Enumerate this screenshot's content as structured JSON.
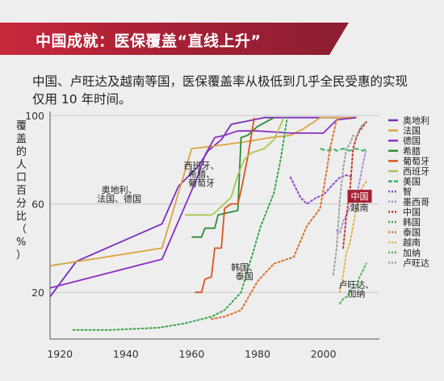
{
  "header": {
    "title": "中国成就：医保覆盖“直线上升”",
    "subtitle": "中国、卢旺达及越南等国，医保覆盖率从极低到几乎全民受惠的实现仅用 10 年时间。"
  },
  "chart_data": {
    "type": "line",
    "ylabel": "覆盖的人口百分比（%）",
    "xlim": [
      1917,
      2017
    ],
    "ylim": [
      0,
      100
    ],
    "x_ticks": [
      "1920",
      "1940",
      "1960",
      "1980",
      "2000"
    ],
    "y_ticks": [
      "20",
      "60",
      "100"
    ],
    "annotations": [
      {
        "text": "奥地利、",
        "x": 1938,
        "y": 65
      },
      {
        "text": "法国、德国",
        "x": 1938,
        "y": 61
      },
      {
        "text": "西班牙、",
        "x": 1963,
        "y": 76
      },
      {
        "text": "希腊、",
        "x": 1963,
        "y": 72
      },
      {
        "text": "葡萄牙",
        "x": 1963,
        "y": 68
      },
      {
        "text": "韩国、",
        "x": 1976,
        "y": 30
      },
      {
        "text": "泰国",
        "x": 1976,
        "y": 26
      },
      {
        "text": "卢旺达、",
        "x": 2010,
        "y": 22
      },
      {
        "text": "加纳",
        "x": 2010,
        "y": 18
      },
      {
        "text": "中国",
        "x": 2011,
        "y": 62
      },
      {
        "text": "越南",
        "x": 2011,
        "y": 57
      }
    ],
    "series": [
      {
        "name": "奥地利",
        "color": "#7b2fbe",
        "dash": "solid",
        "points": [
          [
            1917,
            18
          ],
          [
            1920,
            24
          ],
          [
            1925,
            34
          ],
          [
            1951,
            51
          ],
          [
            1956,
            68
          ],
          [
            1962,
            77
          ],
          [
            1965,
            84
          ],
          [
            1969,
            89
          ],
          [
            1972,
            96
          ],
          [
            1982,
            99
          ],
          [
            2005,
            99
          ],
          [
            2010,
            99
          ]
        ]
      },
      {
        "name": "法国",
        "color": "#d9a441",
        "dash": "solid",
        "points": [
          [
            1917,
            32
          ],
          [
            1951,
            40
          ],
          [
            1957,
            70
          ],
          [
            1960,
            85
          ],
          [
            1966,
            86
          ],
          [
            1976,
            88
          ],
          [
            1984,
            90
          ],
          [
            1990,
            91
          ],
          [
            1994,
            94
          ],
          [
            1999,
            99
          ],
          [
            2010,
            99
          ]
        ]
      },
      {
        "name": "德国",
        "color": "#8a2fc4",
        "dash": "solid",
        "points": [
          [
            1917,
            22
          ],
          [
            1951,
            35
          ],
          [
            1962,
            73
          ],
          [
            1964,
            82
          ],
          [
            1967,
            90
          ],
          [
            1970,
            91
          ],
          [
            1974,
            93
          ],
          [
            1980,
            93
          ],
          [
            1990,
            92
          ],
          [
            2000,
            92
          ],
          [
            2004,
            98
          ],
          [
            2010,
            99
          ]
        ]
      },
      {
        "name": "希腊",
        "color": "#2e8b3a",
        "dash": "solid",
        "points": [
          [
            1960,
            45
          ],
          [
            1963,
            45
          ],
          [
            1964,
            49
          ],
          [
            1967,
            49
          ],
          [
            1968,
            55
          ],
          [
            1974,
            57
          ],
          [
            1975,
            90
          ],
          [
            1977,
            91
          ],
          [
            1980,
            95
          ],
          [
            1985,
            99
          ]
        ]
      },
      {
        "name": "葡萄牙",
        "color": "#d9541e",
        "dash": "solid",
        "points": [
          [
            1961,
            20
          ],
          [
            1963,
            20
          ],
          [
            1964,
            26
          ],
          [
            1966,
            27
          ],
          [
            1967,
            40
          ],
          [
            1969,
            40
          ],
          [
            1970,
            58
          ],
          [
            1972,
            60
          ],
          [
            1974,
            60
          ],
          [
            1975,
            66
          ],
          [
            1977,
            81
          ],
          [
            1979,
            99
          ]
        ]
      },
      {
        "name": "西班牙",
        "color": "#a8c850",
        "dash": "solid",
        "points": [
          [
            1958,
            55
          ],
          [
            1966,
            55
          ],
          [
            1967,
            56
          ],
          [
            1972,
            63
          ],
          [
            1974,
            73
          ],
          [
            1976,
            80
          ],
          [
            1978,
            83
          ],
          [
            1980,
            84
          ],
          [
            1982,
            85
          ],
          [
            1985,
            89
          ],
          [
            1988,
            99
          ]
        ]
      },
      {
        "name": "美国",
        "color": "#3fae66",
        "dash": "dashed",
        "points": [
          [
            1999,
            85
          ],
          [
            2001,
            84
          ],
          [
            2003,
            85
          ],
          [
            2004,
            84
          ],
          [
            2006,
            85
          ],
          [
            2008,
            84
          ],
          [
            2010,
            85
          ],
          [
            2012,
            84
          ],
          [
            2013,
            85
          ]
        ]
      },
      {
        "name": "智",
        "color": "#8c4ad6",
        "dash": "dotted",
        "points": [
          [
            1990,
            72
          ],
          [
            1993,
            63
          ],
          [
            1995,
            60
          ],
          [
            1998,
            63
          ],
          [
            2000,
            64
          ],
          [
            2003,
            69
          ],
          [
            2005,
            72
          ],
          [
            2007,
            73
          ],
          [
            2009,
            72
          ]
        ]
      },
      {
        "name": "墨西哥",
        "color": "#a98de0",
        "dash": "dotted",
        "points": [
          [
            2004,
            48
          ],
          [
            2005,
            47
          ],
          [
            2006,
            52
          ],
          [
            2007,
            55
          ],
          [
            2008,
            58
          ],
          [
            2009,
            62
          ],
          [
            2010,
            64
          ],
          [
            2011,
            70
          ],
          [
            2012,
            78
          ],
          [
            2013,
            85
          ]
        ]
      },
      {
        "name": "中国",
        "color": "#c0392b",
        "dash": "dotted",
        "points": [
          [
            2006,
            40
          ],
          [
            2007,
            55
          ],
          [
            2008,
            65
          ],
          [
            2009,
            85
          ],
          [
            2010,
            90
          ],
          [
            2011,
            93
          ],
          [
            2012,
            95
          ],
          [
            2013,
            97
          ]
        ]
      },
      {
        "name": "韩国",
        "color": "#3aa64a",
        "dash": "dotted",
        "points": [
          [
            1924,
            3
          ],
          [
            1935,
            3
          ],
          [
            1950,
            4
          ],
          [
            1958,
            6
          ],
          [
            1966,
            9
          ],
          [
            1970,
            12
          ],
          [
            1975,
            20
          ],
          [
            1977,
            30
          ],
          [
            1981,
            50
          ],
          [
            1985,
            65
          ],
          [
            1987,
            80
          ],
          [
            1989,
            99
          ]
        ]
      },
      {
        "name": "泰国",
        "color": "#d9702a",
        "dash": "dotted",
        "points": [
          [
            1966,
            8
          ],
          [
            1970,
            9
          ],
          [
            1975,
            12
          ],
          [
            1980,
            25
          ],
          [
            1985,
            33
          ],
          [
            1991,
            36
          ],
          [
            1995,
            50
          ],
          [
            1999,
            58
          ],
          [
            2001,
            75
          ],
          [
            2002,
            85
          ],
          [
            2004,
            98
          ]
        ]
      },
      {
        "name": "越南",
        "color": "#e3b24a",
        "dash": "dotted",
        "points": [
          [
            2005,
            20
          ],
          [
            2006,
            28
          ],
          [
            2007,
            38
          ],
          [
            2008,
            42
          ],
          [
            2009,
            50
          ],
          [
            2010,
            58
          ],
          [
            2011,
            65
          ],
          [
            2012,
            68
          ],
          [
            2013,
            70
          ]
        ]
      },
      {
        "name": "加纳",
        "color": "#4cb85c",
        "dash": "dotted",
        "points": [
          [
            2005,
            15
          ],
          [
            2006,
            17
          ],
          [
            2007,
            18
          ],
          [
            2008,
            20
          ],
          [
            2009,
            22
          ],
          [
            2010,
            23
          ],
          [
            2011,
            27
          ],
          [
            2012,
            30
          ],
          [
            2013,
            33
          ]
        ]
      },
      {
        "name": "卢旺达",
        "color": "#a0a0a0",
        "dash": "dotted",
        "points": [
          [
            2003,
            28
          ],
          [
            2004,
            40
          ],
          [
            2005,
            62
          ],
          [
            2006,
            76
          ],
          [
            2007,
            85
          ],
          [
            2008,
            87
          ],
          [
            2009,
            91
          ],
          [
            2010,
            90
          ],
          [
            2011,
            94
          ],
          [
            2012,
            96
          ],
          [
            2013,
            97
          ]
        ]
      }
    ]
  }
}
